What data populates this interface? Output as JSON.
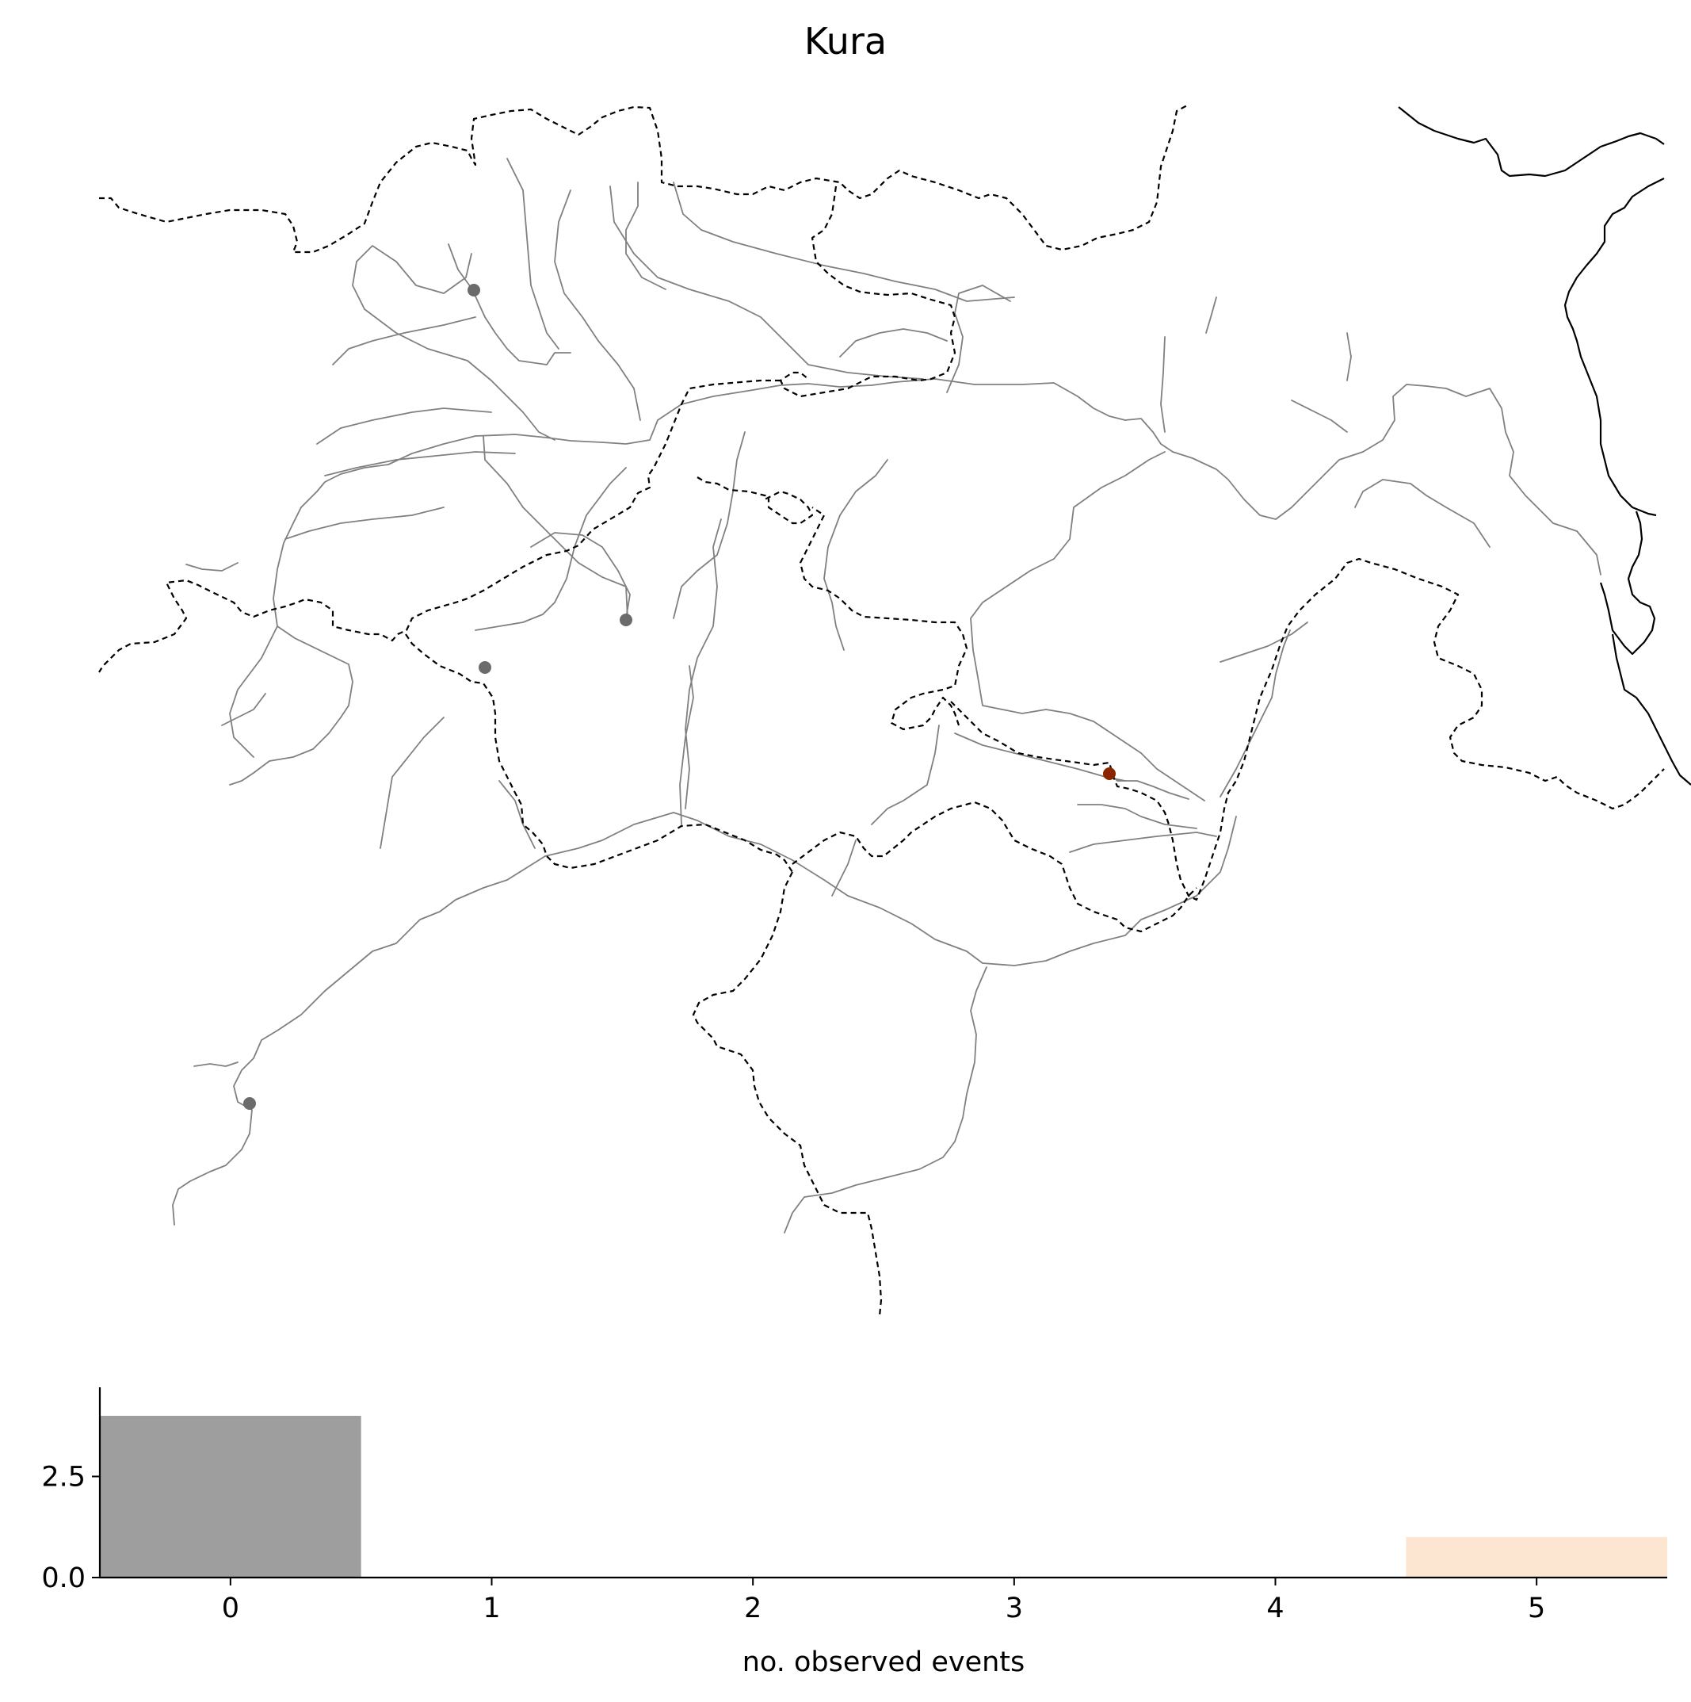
{
  "title": "Kura",
  "map": {
    "station_colors": {
      "default": "#6b6b6b",
      "highlight": "#8b2500"
    }
  },
  "chart_data": {
    "type": "bar",
    "categories": [
      "0",
      "1",
      "2",
      "3",
      "4",
      "5"
    ],
    "values": [
      4,
      0,
      0,
      0,
      0,
      1
    ],
    "bar_colors": [
      "#9e9e9e",
      "#9e9e9e",
      "#9e9e9e",
      "#9e9e9e",
      "#9e9e9e",
      "#fde6d1"
    ],
    "xlabel": "no. observed events",
    "ylabel": "",
    "xlim": [
      -0.5,
      5.5
    ],
    "ylim": [
      0,
      4
    ],
    "yticks": [
      0.0,
      2.5
    ],
    "ytick_labels": [
      "0.0",
      "2.5"
    ],
    "grid": false
  }
}
